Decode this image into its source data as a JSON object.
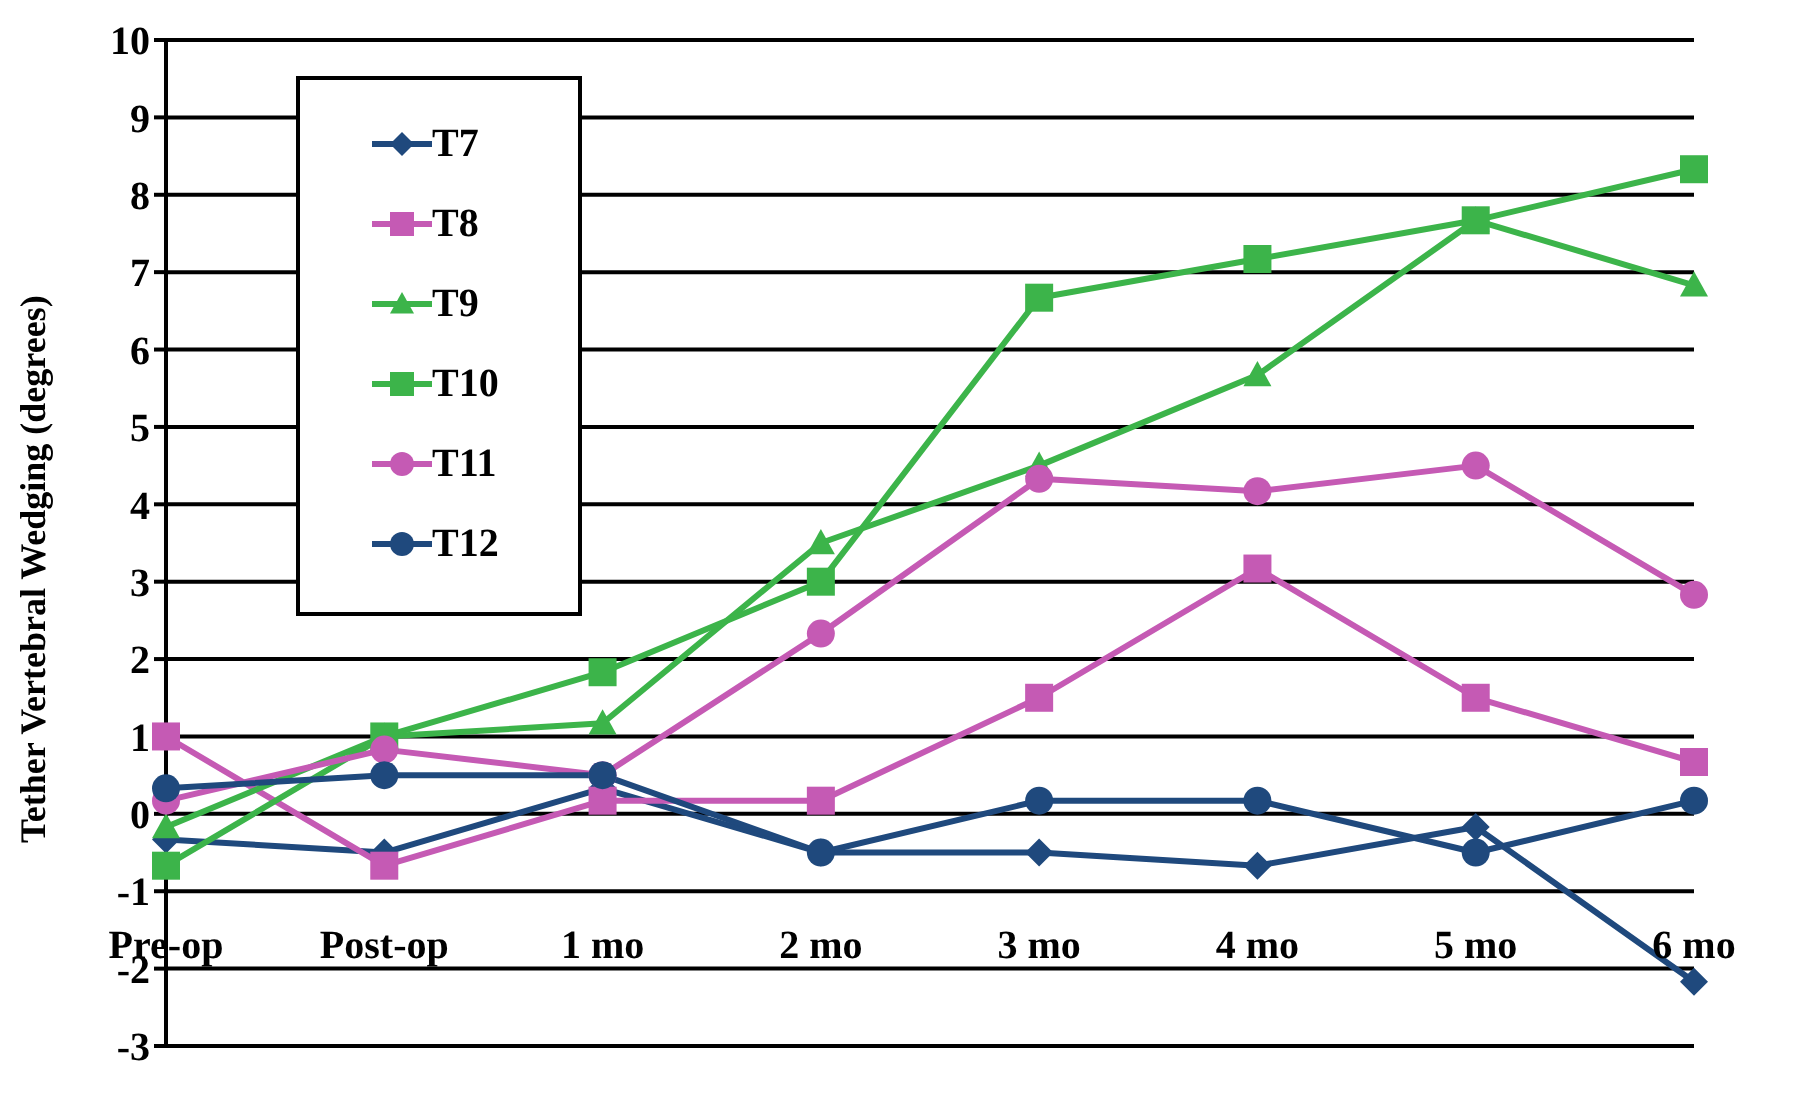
{
  "chart_data": {
    "type": "line",
    "ylabel": "Tether Vertebral Wedging (degrees)",
    "categories": [
      "Pre-op",
      "Post-op",
      "1 mo",
      "2 mo",
      "3 mo",
      "4 mo",
      "5 mo",
      "6 mo"
    ],
    "series": [
      {
        "name": "T7",
        "color": "#1f497d",
        "marker": "diamond",
        "values": [
          -0.33,
          -0.5,
          0.33,
          -0.5,
          -0.5,
          -0.67,
          -0.17,
          -2.17
        ]
      },
      {
        "name": "T8",
        "color": "#c55ab4",
        "marker": "square",
        "values": [
          1,
          -0.67,
          0.17,
          0.17,
          1.5,
          3.17,
          1.5,
          0.67
        ]
      },
      {
        "name": "T9",
        "color": "#3cb44a",
        "marker": "triangle",
        "values": [
          -0.17,
          1,
          1.17,
          3.5,
          4.5,
          5.67,
          7.67,
          6.83
        ]
      },
      {
        "name": "T10",
        "color": "#3cb44a",
        "marker": "square",
        "values": [
          -0.67,
          1,
          1.83,
          3,
          6.67,
          7.17,
          7.67,
          8.33
        ]
      },
      {
        "name": "T11",
        "color": "#c55ab4",
        "marker": "circle",
        "values": [
          0.17,
          0.83,
          0.5,
          2.33,
          4.33,
          4.17,
          4.5,
          2.83
        ]
      },
      {
        "name": "T12",
        "color": "#1f497d",
        "marker": "circle",
        "values": [
          0.33,
          0.5,
          0.5,
          -0.5,
          0.17,
          0.17,
          -0.5,
          0.17
        ]
      }
    ],
    "ylim": [
      -3,
      10
    ],
    "yticks": [
      -3,
      -2,
      -1,
      0,
      1,
      2,
      3,
      4,
      5,
      6,
      7,
      8,
      9,
      10
    ],
    "grid": "y",
    "legend": "top left",
    "line_style": "solid"
  }
}
